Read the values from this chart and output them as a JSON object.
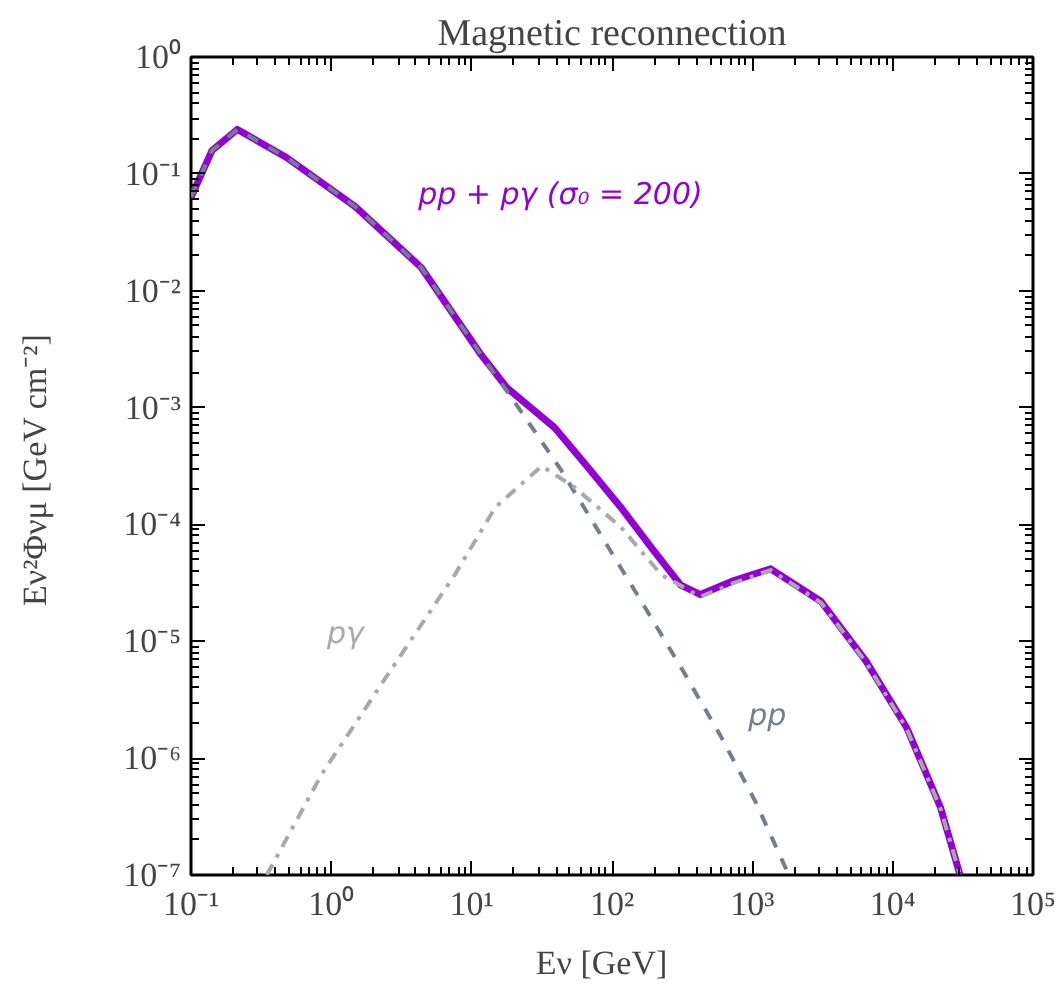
{
  "chart_data": {
    "type": "line",
    "title": "Magnetic reconnection",
    "xlabel": "Eν [GeV]",
    "ylabel": "Eν²Φνμ [GeV cm⁻²]",
    "log": "xy",
    "grid": false,
    "marker": "none",
    "xlim": [
      0.1,
      100000
    ],
    "ylim": [
      1e-07,
      1
    ],
    "xticks": [
      {
        "value": 0.1,
        "label": "10⁻¹"
      },
      {
        "value": 1,
        "label": "10⁰"
      },
      {
        "value": 10,
        "label": "10¹"
      },
      {
        "value": 100,
        "label": "10²"
      },
      {
        "value": 1000,
        "label": "10³"
      },
      {
        "value": 10000,
        "label": "10⁴"
      },
      {
        "value": 100000,
        "label": "10⁵"
      }
    ],
    "yticks": [
      {
        "value": 1e-07,
        "label": "10⁻⁷"
      },
      {
        "value": 1e-06,
        "label": "10⁻⁶"
      },
      {
        "value": 1e-05,
        "label": "10⁻⁵"
      },
      {
        "value": 0.0001,
        "label": "10⁻⁴"
      },
      {
        "value": 0.001,
        "label": "10⁻³"
      },
      {
        "value": 0.01,
        "label": "10⁻²"
      },
      {
        "value": 0.1,
        "label": "10⁻¹"
      },
      {
        "value": 1,
        "label": "10⁰"
      }
    ],
    "series": [
      {
        "name": "pp + pγ (σ₀ = 200)",
        "color": "#9400d3",
        "line_style": "solid",
        "x": [
          0.1,
          0.141,
          0.214,
          0.479,
          1.48,
          4.37,
          11.7,
          17.8,
          38.9,
          66.1,
          115,
          200,
          309,
          427,
          741,
          1350,
          3090,
          6460,
          12600,
          21900,
          30200
        ],
        "values": [
          0.063,
          0.158,
          0.24,
          0.138,
          0.0525,
          0.0158,
          0.00282,
          0.00148,
          0.000676,
          0.000316,
          0.000141,
          5.89e-05,
          3.02e-05,
          2.51e-05,
          3.31e-05,
          4.17e-05,
          2.19e-05,
          6.76e-06,
          1.82e-06,
          3.8e-07,
          1e-07
        ]
      },
      {
        "name": "pp",
        "color": "#708090",
        "line_style": "dashed",
        "x": [
          0.1,
          0.141,
          0.214,
          0.479,
          1.48,
          4.37,
          11.7,
          22.4,
          43.7,
          83.2,
          162,
          309,
          589,
          1050,
          1820
        ],
        "values": [
          0.063,
          0.158,
          0.24,
          0.138,
          0.0525,
          0.0158,
          0.00282,
          0.000933,
          0.000288,
          8.13e-05,
          2.19e-05,
          6.03e-06,
          1.58e-06,
          4.27e-07,
          1e-07
        ]
      },
      {
        "name": "pγ",
        "color": "#a9a9a9",
        "line_style": "dashdot",
        "x": [
          0.347,
          0.851,
          2.51,
          7.59,
          14.8,
          31.6,
          53.7,
          115,
          224,
          427,
          741,
          1350,
          3090,
          6460,
          12600,
          21900,
          30200
        ],
        "values": [
          1e-07,
          7.24e-07,
          5.13e-06,
          3.72e-05,
          0.000141,
          0.000316,
          0.000209,
          9.55e-05,
          3.72e-05,
          2.4e-05,
          3.16e-05,
          4.07e-05,
          2.14e-05,
          6.61e-06,
          1.78e-06,
          3.72e-07,
          1e-07
        ]
      }
    ]
  }
}
